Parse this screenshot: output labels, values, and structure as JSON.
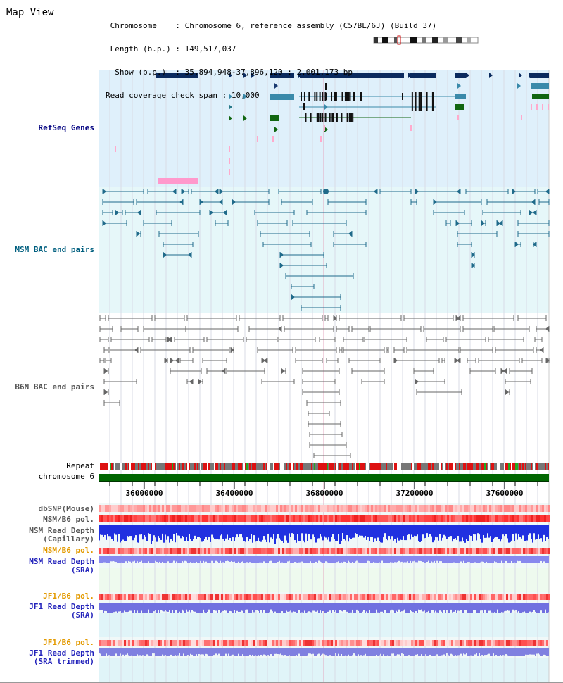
{
  "header": {
    "title": "Map View",
    "rows": [
      {
        "key": " Chromosome    ",
        "value": "Chromosome 6, reference assembly (C57BL/6J) (Build 37)"
      },
      {
        "key": " Length (b.p.) ",
        "value": "149,517,037"
      },
      {
        "key": "  Show (b.p.)  ",
        "value": "35,894,948-37,896,120 : 2,001,173 bp"
      },
      {
        "key": "Read coverage check span",
        "value": "10,000"
      }
    ]
  },
  "tracks": {
    "refseq": {
      "label": "RefSeq Genes",
      "color": "#000080"
    },
    "msm_bac": {
      "label": "MSM BAC end pairs",
      "color": "#005f7f"
    },
    "b6n_bac": {
      "label": "B6N BAC end pairs",
      "color": "#555555"
    },
    "repeat": {
      "label": "Repeat"
    },
    "chromosome": {
      "label": "chromosome 6",
      "color": "#006600"
    },
    "axis": {
      "ticks": [
        "36000000",
        "36400000",
        "36800000",
        "37200000",
        "37600000"
      ]
    },
    "dbsnp": {
      "label": "dbSNP(Mouse)"
    },
    "msm_b6_pol_1": {
      "label": "MSM/B6 pol."
    },
    "msm_read_depth_cap": {
      "label": "MSM Read Depth\n(Capillary)"
    },
    "msm_b6_pol_2": {
      "label": "MSM/B6 pol."
    },
    "msm_read_depth_sra": {
      "label": "MSM Read Depth\n(SRA)"
    },
    "jf1_b6_pol_1": {
      "label": "JF1/B6 pol."
    },
    "jf1_read_depth_sra": {
      "label": "JF1 Read Depth\n(SRA)"
    },
    "jf1_b6_pol_2": {
      "label": "JF1/B6 pol."
    },
    "jf1_read_depth_trim": {
      "label": "JF1 Read Depth\n(SRA trimmed)"
    }
  },
  "ideogram": {
    "highlight_color": "#cc0000"
  }
}
